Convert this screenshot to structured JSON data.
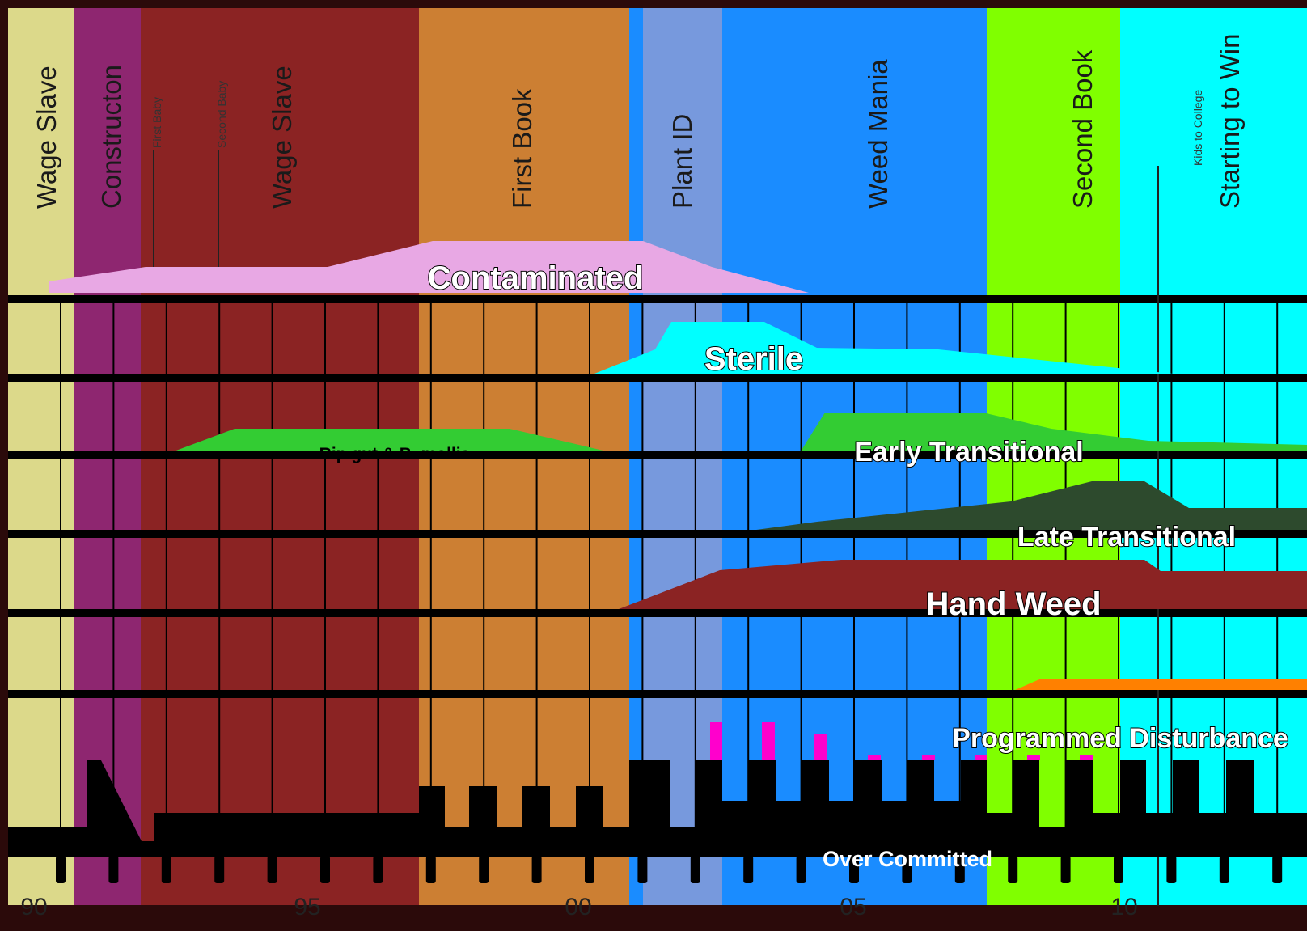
{
  "periods": [
    "Wage Slave",
    "Constructon",
    "Wage Slave",
    "First Book",
    "Plant ID",
    "Weed Mania",
    "Second Book",
    "Starting to Win"
  ],
  "events": [
    "First Baby",
    "Second Baby",
    "Kids to College"
  ],
  "phases": [
    "Contaminated",
    "Sterile",
    "Rip gut & B. mollis",
    "Early Transitional",
    "Late Transitional",
    "Hand Weed",
    "Programmed Disturbance",
    "Over Committed"
  ],
  "years": [
    "90",
    "95",
    "00",
    "05",
    "10"
  ]
}
